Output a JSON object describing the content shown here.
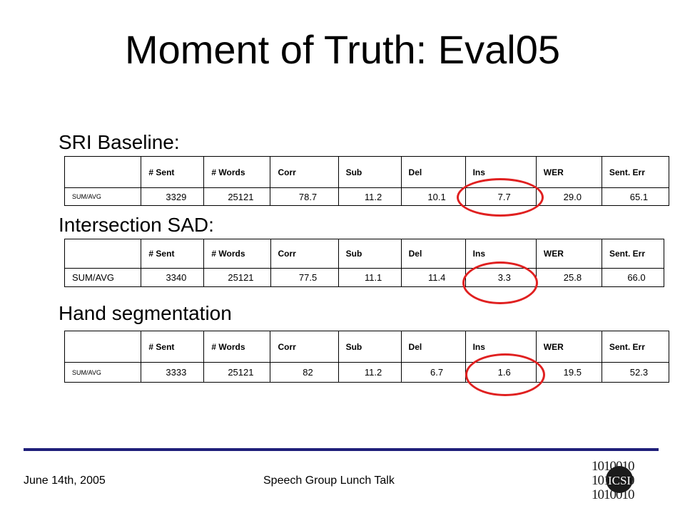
{
  "title": "Moment of Truth: Eval05",
  "sections": [
    {
      "heading": "SRI Baseline:",
      "columns": [
        "",
        "# Sent",
        "# Words",
        "Corr",
        "Sub",
        "Del",
        "Ins",
        "WER",
        "Sent. Err"
      ],
      "row": [
        "SUM/AVG",
        "3329",
        "25121",
        "78.7",
        "11.2",
        "10.1",
        "7.7",
        "29.0",
        "65.1"
      ]
    },
    {
      "heading": "Intersection SAD:",
      "columns": [
        "",
        "# Sent",
        "# Words",
        "Corr",
        "Sub",
        "Del",
        "Ins",
        "WER",
        "Sent. Err"
      ],
      "row": [
        "SUM/AVG",
        "3340",
        "25121",
        "77.5",
        "11.1",
        "11.4",
        "3.3",
        "25.8",
        "66.0"
      ]
    },
    {
      "heading": "Hand segmentation",
      "columns": [
        "",
        "# Sent",
        "# Words",
        "Corr",
        "Sub",
        "Del",
        "Ins",
        "WER",
        "Sent. Err"
      ],
      "row": [
        "SUM/AVG",
        "3333",
        "25121",
        "82",
        "11.2",
        "6.7",
        "1.6",
        "19.5",
        "52.3"
      ]
    }
  ],
  "footer": {
    "date": "June 14th, 2005",
    "talk": "Speech Group Lunch Talk",
    "logo_text": "ICSI",
    "logo_binary": [
      "1010010",
      "1010010",
      "1010010"
    ]
  },
  "colors": {
    "highlight_ring": "#e02020",
    "rule": "#1f1f7a"
  }
}
